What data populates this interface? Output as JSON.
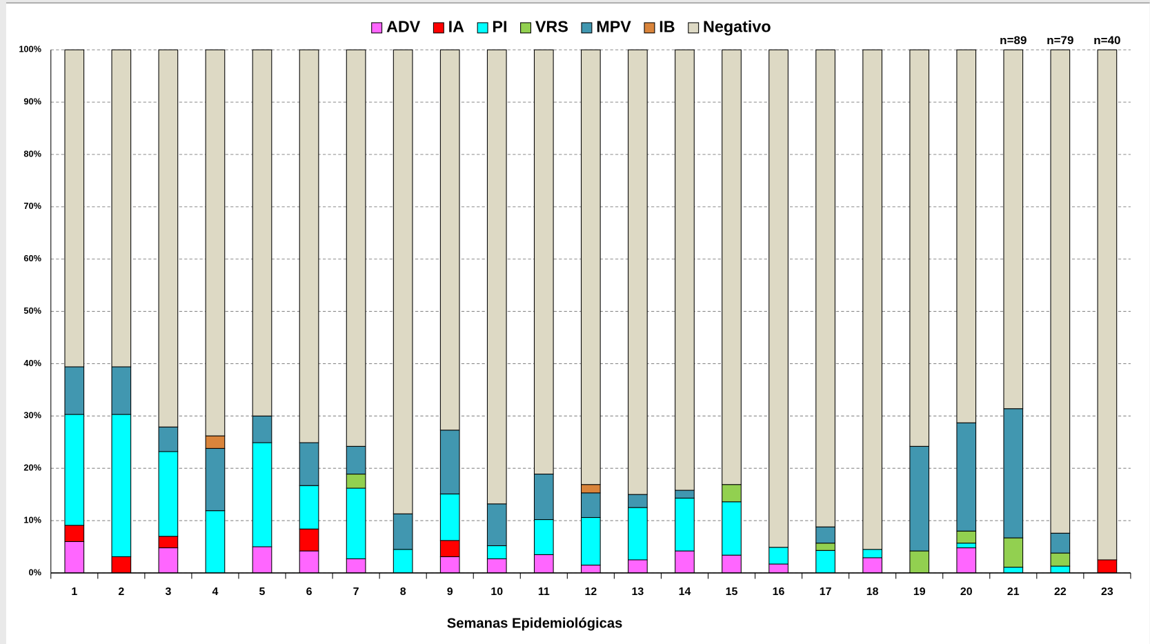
{
  "chart_data": {
    "type": "stacked_bar",
    "x_label": "Semanas Epidemiológicas",
    "categories": [
      "1",
      "2",
      "3",
      "4",
      "5",
      "6",
      "7",
      "8",
      "9",
      "10",
      "11",
      "12",
      "13",
      "14",
      "15",
      "16",
      "17",
      "18",
      "19",
      "20",
      "21",
      "22",
      "23"
    ],
    "series": [
      {
        "name": "ADV",
        "color": "#ff66ff",
        "values": [
          6.0,
          0,
          4.8,
          0,
          5.0,
          4.2,
          2.7,
          0,
          3.1,
          2.7,
          3.5,
          1.5,
          2.5,
          4.2,
          3.4,
          1.7,
          0,
          2.9,
          0,
          4.8,
          0,
          0,
          0
        ]
      },
      {
        "name": "IA",
        "color": "#ff0000",
        "values": [
          3.1,
          3.1,
          2.2,
          0,
          0,
          4.2,
          0,
          0,
          3.1,
          0,
          0,
          0,
          0,
          0,
          0,
          0,
          0,
          0,
          0,
          0,
          0,
          0,
          2.5
        ]
      },
      {
        "name": "PI",
        "color": "#00ffff",
        "values": [
          21.2,
          27.2,
          16.2,
          11.9,
          19.9,
          8.3,
          13.5,
          4.5,
          8.9,
          2.5,
          6.7,
          9.1,
          10.0,
          10.1,
          10.2,
          3.2,
          4.3,
          1.6,
          0,
          0.9,
          1.1,
          1.3,
          0
        ]
      },
      {
        "name": "VRS",
        "color": "#92d050",
        "values": [
          0,
          0,
          0,
          0,
          0,
          0,
          2.7,
          0,
          0,
          0,
          0,
          0,
          0,
          0,
          3.3,
          0,
          1.4,
          0,
          4.2,
          2.3,
          5.6,
          2.5,
          0
        ]
      },
      {
        "name": "MPV",
        "color": "#4197b0",
        "values": [
          9.1,
          9.1,
          4.7,
          11.9,
          5.1,
          8.2,
          5.3,
          6.8,
          12.2,
          8.0,
          8.7,
          4.7,
          2.5,
          1.5,
          0,
          0,
          3.1,
          0,
          20.0,
          20.7,
          24.7,
          3.8,
          0
        ]
      },
      {
        "name": "IB",
        "color": "#d9843b",
        "values": [
          0,
          0,
          0,
          2.4,
          0,
          0,
          0,
          0,
          0,
          0,
          0,
          1.6,
          0,
          0,
          0,
          0,
          0,
          0,
          0,
          0,
          0,
          0,
          0
        ]
      },
      {
        "name": "Negativo",
        "color": "#ddd9c4",
        "values": [
          60.6,
          60.6,
          72.1,
          73.8,
          70.0,
          75.1,
          75.8,
          88.7,
          72.7,
          86.8,
          81.1,
          83.1,
          85.0,
          84.2,
          83.1,
          95.1,
          91.2,
          95.5,
          75.8,
          71.3,
          68.6,
          92.4,
          97.5
        ]
      }
    ],
    "annotations": [
      {
        "category": "21",
        "text": "n=89"
      },
      {
        "category": "22",
        "text": "n=79"
      },
      {
        "category": "23",
        "text": "n=40"
      }
    ],
    "ylim": [
      0,
      100
    ],
    "yticks": [
      {
        "value": 0,
        "label": "0%"
      },
      {
        "value": 10,
        "label": "10%"
      },
      {
        "value": 20,
        "label": "20%"
      },
      {
        "value": 30,
        "label": "30%"
      },
      {
        "value": 40,
        "label": "40%"
      },
      {
        "value": 50,
        "label": "50%"
      },
      {
        "value": 60,
        "label": "60%"
      },
      {
        "value": 70,
        "label": "70%"
      },
      {
        "value": 80,
        "label": "80%"
      },
      {
        "value": 90,
        "label": "90%"
      },
      {
        "value": 100,
        "label": "100%"
      }
    ],
    "grid": true,
    "legend": "top"
  }
}
